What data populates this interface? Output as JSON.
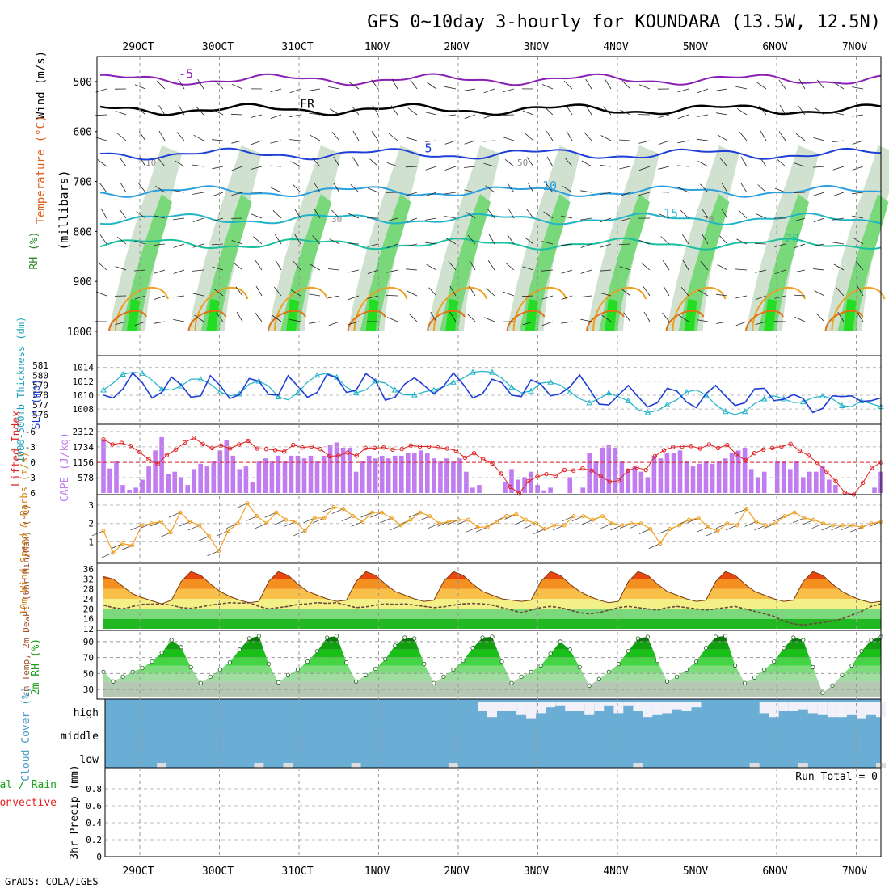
{
  "title": "GFS 0~10day 3-hourly for KOUNDARA (13.5W, 12.5N)",
  "footer": "GrADS: COLA/IGES",
  "colors": {
    "purple": "#8a1fb4",
    "blue": "#1e3fd6",
    "cyan": "#20b4c8",
    "teal": "#18c0a0",
    "orange": "#f0a020",
    "darkorange": "#e07010",
    "red": "#e02020",
    "lilac": "#c07cf0",
    "green": "#2fb82f",
    "cloud": "#6aaed6",
    "cloudlight": "#f2f0f8"
  },
  "chart_data": [
    {
      "id": "upper",
      "type": "contour",
      "time_axis": [
        "29OCT",
        "30OCT",
        "31OCT",
        "1NOV",
        "2NOV",
        "3NOV",
        "4NOV",
        "5NOV",
        "6NOV",
        "7NOV"
      ],
      "ylabel": "(millibars)",
      "side_labels": [
        "Wind (m/s)",
        "Temperature (°C)",
        "RH (%)"
      ],
      "yticks": [
        "500",
        "600",
        "700",
        "800",
        "900",
        "1000"
      ],
      "ylim": [
        1000,
        450
      ],
      "isotherms": [
        {
          "label": "-5",
          "level_mb": 496
        },
        {
          "label": "FR",
          "level_mb": 556
        },
        {
          "label": "5",
          "level_mb": 645
        },
        {
          "label": "10",
          "level_mb": 720
        },
        {
          "label": "15",
          "level_mb": 775
        },
        {
          "label": "20",
          "level_mb": 825
        }
      ],
      "rh_labels": [
        "10",
        "30",
        "50",
        "70"
      ]
    },
    {
      "id": "thick_slp",
      "type": "line",
      "ylabel_left": "1000-500mb Thickness (dm)",
      "ylabel_right": "SLP (mb)",
      "left_ticks": [
        "581",
        "580",
        "579",
        "578",
        "577",
        "576"
      ],
      "right_ticks": [
        "1014",
        "1012",
        "1010",
        "1008"
      ],
      "slp": [
        1010.0,
        1009.6,
        1010.9,
        1013.2,
        1011.8,
        1009.6,
        1010.4,
        1012.6,
        1011.5,
        1009.7,
        1009.9,
        1012.8,
        1011.4,
        1009.5,
        1010.1,
        1012.4,
        1012.0,
        1010.1,
        1010.0,
        1012.8,
        1011.3,
        1009.7,
        1010.4,
        1013.0,
        1012.5,
        1010.4,
        1010.7,
        1013.1,
        1012.1,
        1009.3,
        1009.7,
        1011.6,
        1012.5,
        1011.4,
        1010.2,
        1011.3,
        1013.2,
        1011.6,
        1009.6,
        1010.2,
        1012.3,
        1011.8,
        1010.0,
        1009.8,
        1012.2,
        1011.6,
        1009.9,
        1010.2,
        1011.2,
        1012.9,
        1010.9,
        1008.7,
        1008.6,
        1010.0,
        1011.4,
        1009.8,
        1008.3,
        1008.9,
        1011.0,
        1010.6,
        1009.0,
        1008.2,
        1010.2,
        1011.4,
        1009.9,
        1008.5,
        1008.9,
        1010.9,
        1011.0,
        1009.2,
        1009.4,
        1010.1,
        1009.5,
        1007.5,
        1008.1,
        1009.9,
        1009.8,
        1009.9,
        1009.1,
        1009.2,
        1009.6
      ],
      "thickness": [
        578.5,
        579.2,
        580.1,
        580.3,
        580.2,
        579.5,
        578.6,
        578.5,
        578.9,
        579.6,
        579.6,
        579.1,
        578.3,
        577.9,
        578.1,
        579.1,
        579.4,
        578.9,
        577.8,
        577.5,
        578.2,
        579.3,
        580.0,
        580.2,
        579.8,
        578.8,
        578.2,
        578.5,
        579.4,
        579.2,
        578.5,
        578.0,
        578.0,
        578.3,
        578.5,
        578.8,
        579.3,
        579.7,
        580.3,
        580.4,
        580.3,
        579.7,
        578.8,
        578.2,
        578.4,
        579.2,
        579.3,
        579.0,
        578.3,
        577.6,
        577.2,
        577.6,
        578.2,
        577.8,
        577.4,
        576.5,
        576.2,
        576.4,
        577.0,
        577.5,
        578.3,
        578.5,
        578.0,
        577.0,
        576.3,
        576.0,
        576.3,
        577.1,
        577.6,
        577.9,
        577.6,
        577.2,
        577.3,
        577.7,
        577.9,
        577.6,
        576.9,
        576.8,
        577.4,
        577.1,
        576.8
      ]
    },
    {
      "id": "cape_li",
      "type": "bar+line",
      "ylabel_left": "Lifted Index",
      "ylabel_right": "CAPE (J/kg)",
      "left_ticks": [
        "-6",
        "-3",
        "0",
        "3",
        "6"
      ],
      "right_ticks": [
        "2312",
        "1734",
        "1156",
        "578"
      ],
      "cape": [
        2000,
        920,
        1200,
        300,
        120,
        200,
        500,
        1000,
        1600,
        2100,
        700,
        800,
        600,
        300,
        900,
        1100,
        1000,
        1200,
        1600,
        2000,
        1400,
        900,
        1000,
        400,
        1200,
        1300,
        1200,
        1400,
        1200,
        1400,
        1400,
        1300,
        1400,
        1200,
        1400,
        1800,
        1900,
        1700,
        1700,
        800,
        1200,
        1400,
        1300,
        1400,
        1300,
        1400,
        1400,
        1500,
        1500,
        1600,
        1500,
        1300,
        1200,
        1300,
        1200,
        1300,
        800,
        200,
        300,
        0,
        0,
        0,
        400,
        900,
        500,
        600,
        800,
        300,
        100,
        200,
        0,
        0,
        600,
        0,
        200,
        1500,
        1200,
        1700,
        1800,
        1700,
        1200,
        900,
        1000,
        800,
        600,
        1400,
        1300,
        1500,
        1500,
        1600,
        1200,
        1000,
        1100,
        1200,
        1100,
        1200,
        1300,
        1500,
        1600,
        1700,
        900,
        600,
        800,
        0,
        1200,
        1200,
        900,
        1200,
        600,
        800,
        800,
        1000,
        500,
        300,
        0,
        0,
        0,
        0,
        0,
        200,
        800
      ],
      "lifted_index": [
        -4.5,
        -3.5,
        -3.8,
        -3.2,
        -2.0,
        -0.6,
        0.3,
        -1.4,
        -2.5,
        -3.9,
        -4.8,
        -3.6,
        -2.8,
        -3.3,
        -2.7,
        -3.5,
        -4.2,
        -2.7,
        -2.6,
        -2.4,
        -2.1,
        -3.4,
        -2.9,
        -3.1,
        -2.6,
        -1.2,
        -1.3,
        -1.9,
        -1.3,
        -2.8,
        -2.8,
        -2.9,
        -2.5,
        -2.6,
        -3.3,
        -3.1,
        -3.1,
        -2.9,
        -2.7,
        -2.3,
        -0.9,
        -1.8,
        -0.6,
        0.2,
        2.2,
        4.8,
        6.1,
        3.7,
        2.8,
        2.3,
        2.6,
        1.5,
        1.6,
        1.2,
        1.6,
        2.7,
        3.8,
        3.6,
        1.6,
        1.0,
        1.5,
        -1.2,
        -2.4,
        -3.0,
        -3.1,
        -3.2,
        -2.7,
        -3.5,
        -2.8,
        -3.4,
        -1.6,
        -0.4,
        -1.8,
        -2.5,
        -2.8,
        -3.1,
        -3.6,
        -2.3,
        -1.3,
        0.1,
        1.8,
        3.7,
        5.9,
        6.3,
        4.0,
        1.1,
        0.0
      ],
      "dashed_ref": 0
    },
    {
      "id": "wind10m",
      "type": "line",
      "ylabel": "10m Wind Speed & Barbs (m/s)",
      "ticks": [
        "1",
        "2",
        "3"
      ],
      "ylim": [
        0,
        3.4
      ],
      "speed": [
        1.6,
        0.4,
        0.9,
        0.8,
        1.9,
        2.0,
        2.1,
        1.5,
        2.6,
        2.1,
        1.9,
        1.3,
        0.5,
        1.6,
        2.0,
        3.1,
        2.4,
        2.0,
        2.6,
        2.2,
        2.1,
        1.6,
        2.3,
        2.3,
        2.9,
        2.8,
        2.4,
        2.1,
        2.6,
        2.6,
        2.3,
        1.9,
        2.2,
        2.6,
        2.4,
        2.0,
        2.1,
        2.2,
        2.2,
        1.8,
        1.8,
        2.1,
        2.4,
        2.5,
        2.2,
        2.0,
        1.7,
        1.9,
        1.9,
        2.4,
        2.4,
        2.2,
        2.4,
        2.0,
        1.9,
        2.0,
        2.0,
        1.7,
        0.9,
        1.7,
        1.9,
        2.2,
        2.3,
        1.8,
        1.6,
        2.0,
        1.9,
        2.8,
        2.1,
        1.9,
        2.0,
        2.4,
        2.6,
        2.3,
        2.2,
        2.0,
        1.9,
        1.9,
        1.9,
        1.8,
        2.0,
        2.1
      ]
    },
    {
      "id": "temp2m",
      "type": "area+line",
      "ylabel": "2m Temp, 2m DewPt (6hr Min/Max) (°C)",
      "ticks": [
        "12",
        "16",
        "20",
        "24",
        "28",
        "32",
        "36"
      ],
      "ylim": [
        12,
        37
      ],
      "temp": [
        33.0,
        32.0,
        29.0,
        26.0,
        24.5,
        23.2,
        22.0,
        23.5,
        31.0,
        35.0,
        33.5,
        30.0,
        27.0,
        25.0,
        23.5,
        22.5,
        23.0,
        31.0,
        35.0,
        33.5,
        30.0,
        27.0,
        25.5,
        24.0,
        23.0,
        23.5,
        31.0,
        35.0,
        33.5,
        30.0,
        27.0,
        25.5,
        24.0,
        23.0,
        23.5,
        31.0,
        35.0,
        33.5,
        30.0,
        27.0,
        25.5,
        24.0,
        23.5,
        23.0,
        23.5,
        31.0,
        35.0,
        33.5,
        30.0,
        27.0,
        25.0,
        23.5,
        22.5,
        23.0,
        31.0,
        35.0,
        33.5,
        30.0,
        27.0,
        25.5,
        24.0,
        23.0,
        23.5,
        31.0,
        35.0,
        33.5,
        30.0,
        27.0,
        25.5,
        24.0,
        23.0,
        23.5,
        31.0,
        35.0,
        33.5,
        30.0,
        27.0,
        25.0,
        23.5,
        22.5,
        23.0
      ],
      "dewpoint": [
        21.5,
        20.5,
        20.0,
        21.0,
        21.8,
        21.9,
        22.0,
        21.5,
        20.5,
        20.2,
        20.8,
        21.5,
        22.0,
        22.5,
        22.3,
        22.5,
        21.0,
        20.0,
        20.5,
        21.0,
        21.8,
        22.0,
        22.5,
        22.2,
        22.5,
        21.5,
        20.5,
        20.8,
        21.5,
        22.0,
        21.8,
        22.0,
        21.5,
        21.0,
        20.5,
        20.8,
        21.5,
        22.0,
        22.2,
        22.0,
        21.5,
        20.5,
        19.5,
        18.5,
        19.5,
        20.5,
        21.0,
        20.5,
        19.5,
        18.5,
        18.0,
        18.5,
        19.5,
        20.5,
        21.0,
        20.5,
        20.0,
        19.5,
        20.5,
        21.0,
        20.5,
        20.0,
        19.5,
        20.0,
        20.5,
        21.0,
        20.0,
        19.0,
        18.0,
        17.0,
        15.0,
        14.0,
        13.5,
        14.0,
        14.5,
        15.0,
        16.0,
        17.5,
        19.0,
        21.0,
        22.0
      ]
    },
    {
      "id": "rh2m",
      "type": "area",
      "ylabel": "2m RH (%)",
      "ticks": [
        "30",
        "50",
        "70",
        "90"
      ],
      "ylim": [
        20,
        100
      ],
      "rh": [
        52,
        40,
        48,
        55,
        65,
        78,
        92,
        88,
        60,
        38,
        46,
        55,
        65,
        80,
        94,
        97,
        62,
        39,
        48,
        55,
        65,
        78,
        95,
        97,
        64,
        40,
        48,
        56,
        68,
        85,
        95,
        94,
        62,
        38,
        46,
        55,
        66,
        82,
        95,
        96,
        65,
        38,
        46,
        52,
        60,
        75,
        90,
        80,
        58,
        35,
        43,
        52,
        62,
        78,
        94,
        96,
        66,
        40,
        46,
        55,
        65,
        82,
        96,
        97,
        60,
        38,
        45,
        55,
        65,
        82,
        95,
        92,
        58,
        26,
        35,
        48,
        60,
        78,
        92,
        96,
        90
      ],
      "points": [
        52,
        40,
        46,
        52,
        57,
        65,
        76,
        92,
        83,
        58,
        38,
        46,
        55,
        64,
        80,
        94,
        97,
        62,
        39,
        48,
        55,
        65,
        78,
        95,
        97,
        64,
        40,
        48,
        56,
        68,
        85,
        95,
        94,
        62,
        38,
        46,
        55,
        66,
        82,
        95,
        96,
        65,
        38,
        46,
        52,
        60,
        75,
        90,
        80,
        58,
        35,
        43,
        52,
        62,
        78,
        94,
        96,
        66,
        40,
        46,
        55,
        65,
        82,
        96,
        97,
        60,
        38,
        45,
        55,
        65,
        82,
        95,
        92,
        58,
        26,
        35,
        48,
        60,
        78,
        92,
        96
      ]
    },
    {
      "id": "cloud",
      "type": "heatmap",
      "ylabel": "Cloud Cover (%)",
      "levels": [
        "high",
        "middle",
        "low"
      ],
      "high_cover": [
        1,
        1,
        1,
        1,
        1,
        1,
        1,
        1,
        1,
        1,
        1,
        1,
        1,
        1,
        1,
        1,
        1,
        1,
        1,
        1,
        1,
        1,
        1,
        1,
        1,
        1,
        1,
        1,
        1,
        1,
        1,
        1,
        1,
        1,
        1,
        1,
        1,
        1,
        1,
        0.5,
        0.2,
        0.5,
        0.5,
        0.3,
        0.1,
        0.4,
        0.7,
        0.8,
        0.5,
        0.5,
        0.3,
        0.5,
        0.8,
        0.4,
        0.8,
        0.5,
        0.2,
        0.3,
        0.4,
        0.6,
        0.5,
        0.7,
        1,
        1,
        1,
        1,
        1,
        1,
        0.4,
        0.2,
        0.5,
        0.5,
        0.6,
        0.4,
        0.3,
        0.2,
        0.2,
        0.3,
        0.1,
        0.3,
        0.2
      ],
      "low_marks": [
        6,
        16,
        19,
        26,
        36,
        55,
        67,
        72,
        80
      ]
    },
    {
      "id": "precip",
      "type": "bar",
      "ylabel": "3hr Precip (mm)",
      "side_labels": [
        "Total / Rain",
        "Convective"
      ],
      "ticks": [
        "0",
        "0.2",
        "0.4",
        "0.6",
        "0.8"
      ],
      "ylim": [
        0,
        1
      ],
      "values": [],
      "run_total": "Run Total = 0"
    }
  ]
}
